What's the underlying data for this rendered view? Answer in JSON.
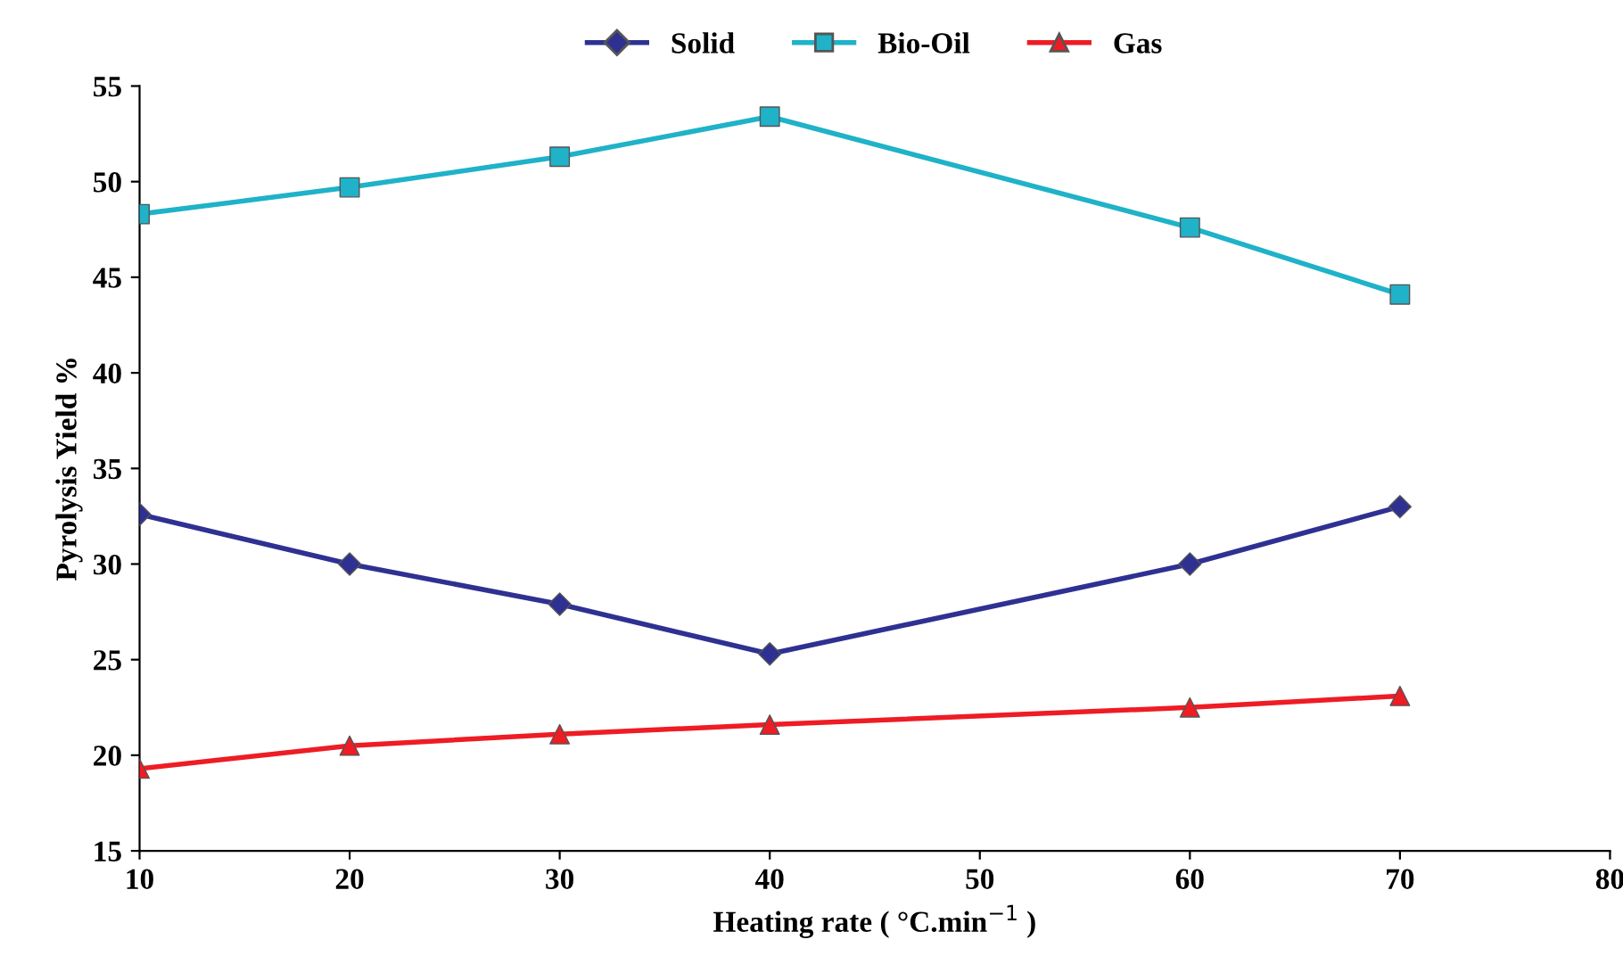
{
  "chart_data": {
    "type": "line",
    "xlabel": "Heating rate ( °C.min$^{−1}$ )",
    "ylabel": "Pyrolysis Yield %",
    "x": [
      10,
      20,
      30,
      40,
      60,
      70
    ],
    "series": [
      {
        "name": "Solid",
        "color": "#2e3192",
        "marker": "diamond",
        "values": [
          32.6,
          30.0,
          27.9,
          25.3,
          30.0,
          33.0
        ]
      },
      {
        "name": "Bio-Oil",
        "color": "#1fb2c8",
        "marker": "square",
        "values": [
          48.3,
          49.7,
          51.3,
          53.4,
          47.6,
          44.1
        ]
      },
      {
        "name": "Gas",
        "color": "#ee1c24",
        "marker": "triangle",
        "values": [
          19.3,
          20.5,
          21.1,
          21.6,
          22.5,
          23.1
        ]
      }
    ],
    "xlim": [
      10,
      80
    ],
    "xticks": [
      10,
      20,
      30,
      40,
      50,
      60,
      70,
      80
    ],
    "ylim": [
      15,
      55
    ],
    "yticks": [
      15,
      20,
      25,
      30,
      35,
      40,
      45,
      50,
      55
    ],
    "grid": false,
    "legend": "top"
  }
}
